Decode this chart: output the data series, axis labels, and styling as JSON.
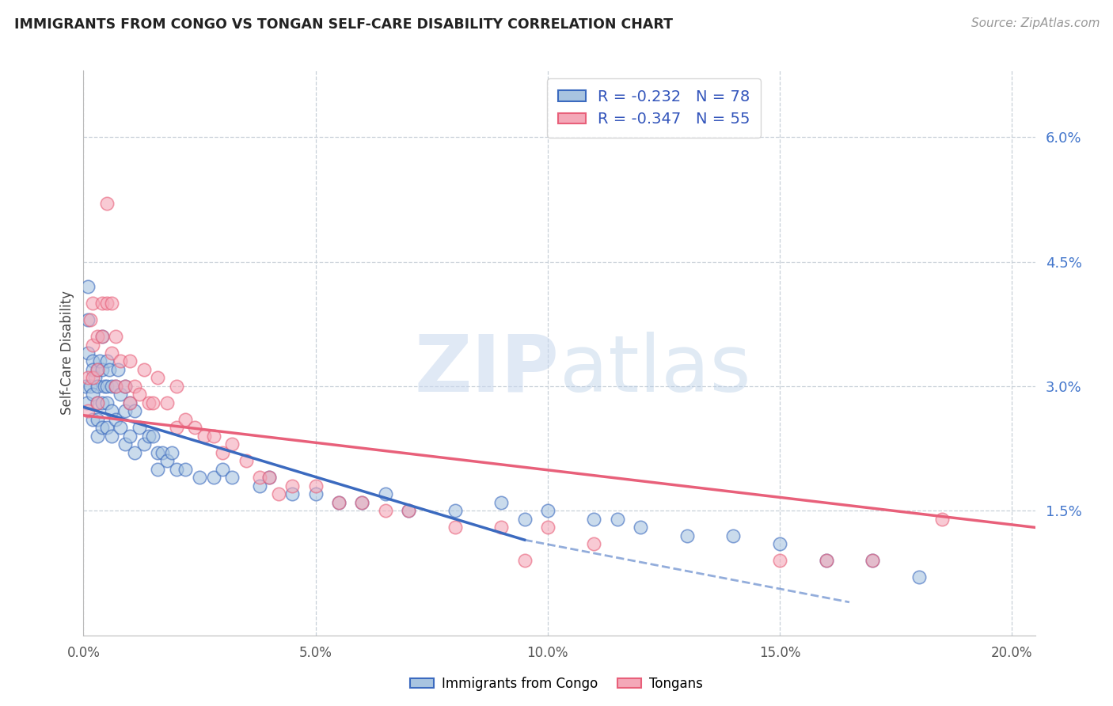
{
  "title": "IMMIGRANTS FROM CONGO VS TONGAN SELF-CARE DISABILITY CORRELATION CHART",
  "source": "Source: ZipAtlas.com",
  "ylabel": "Self-Care Disability",
  "legend_label1": "Immigrants from Congo",
  "legend_label2": "Tongans",
  "r1": -0.232,
  "n1": 78,
  "r2": -0.347,
  "n2": 55,
  "color1": "#a8c4e0",
  "color2": "#f4a8b8",
  "trendline1_color": "#3b6abf",
  "trendline2_color": "#e8607a",
  "xlim": [
    0.0,
    0.205
  ],
  "ylim": [
    0.0,
    0.068
  ],
  "x_ticks": [
    0.0,
    0.05,
    0.1,
    0.15,
    0.2
  ],
  "x_tick_labels": [
    "0.0%",
    "5.0%",
    "10.0%",
    "15.0%",
    "20.0%"
  ],
  "y_ticks_right": [
    0.015,
    0.03,
    0.045,
    0.06
  ],
  "y_tick_labels_right": [
    "1.5%",
    "3.0%",
    "4.5%",
    "6.0%"
  ],
  "background_color": "#ffffff",
  "grid_color": "#c8d0d8",
  "congo_x": [
    0.0005,
    0.0008,
    0.001,
    0.001,
    0.001,
    0.0015,
    0.002,
    0.002,
    0.002,
    0.002,
    0.0025,
    0.003,
    0.003,
    0.003,
    0.003,
    0.003,
    0.0035,
    0.004,
    0.004,
    0.004,
    0.004,
    0.0045,
    0.005,
    0.005,
    0.005,
    0.005,
    0.0055,
    0.006,
    0.006,
    0.006,
    0.007,
    0.007,
    0.0075,
    0.008,
    0.008,
    0.009,
    0.009,
    0.009,
    0.01,
    0.01,
    0.011,
    0.011,
    0.012,
    0.013,
    0.014,
    0.015,
    0.016,
    0.016,
    0.017,
    0.018,
    0.019,
    0.02,
    0.022,
    0.025,
    0.028,
    0.03,
    0.032,
    0.038,
    0.04,
    0.045,
    0.05,
    0.055,
    0.06,
    0.065,
    0.07,
    0.08,
    0.09,
    0.095,
    0.1,
    0.11,
    0.115,
    0.12,
    0.13,
    0.14,
    0.15,
    0.16,
    0.17,
    0.18
  ],
  "congo_y": [
    0.03,
    0.028,
    0.042,
    0.038,
    0.034,
    0.03,
    0.033,
    0.032,
    0.029,
    0.026,
    0.031,
    0.032,
    0.03,
    0.028,
    0.026,
    0.024,
    0.033,
    0.036,
    0.032,
    0.028,
    0.025,
    0.03,
    0.033,
    0.03,
    0.028,
    0.025,
    0.032,
    0.03,
    0.027,
    0.024,
    0.03,
    0.026,
    0.032,
    0.029,
    0.025,
    0.03,
    0.027,
    0.023,
    0.028,
    0.024,
    0.027,
    0.022,
    0.025,
    0.023,
    0.024,
    0.024,
    0.022,
    0.02,
    0.022,
    0.021,
    0.022,
    0.02,
    0.02,
    0.019,
    0.019,
    0.02,
    0.019,
    0.018,
    0.019,
    0.017,
    0.017,
    0.016,
    0.016,
    0.017,
    0.015,
    0.015,
    0.016,
    0.014,
    0.015,
    0.014,
    0.014,
    0.013,
    0.012,
    0.012,
    0.011,
    0.009,
    0.009,
    0.007
  ],
  "tongan_x": [
    0.001,
    0.001,
    0.0015,
    0.002,
    0.002,
    0.002,
    0.003,
    0.003,
    0.003,
    0.004,
    0.004,
    0.005,
    0.005,
    0.006,
    0.006,
    0.007,
    0.007,
    0.008,
    0.009,
    0.01,
    0.01,
    0.011,
    0.012,
    0.013,
    0.014,
    0.015,
    0.016,
    0.018,
    0.02,
    0.02,
    0.022,
    0.024,
    0.026,
    0.028,
    0.03,
    0.032,
    0.035,
    0.038,
    0.04,
    0.045,
    0.05,
    0.055,
    0.06,
    0.065,
    0.07,
    0.08,
    0.09,
    0.1,
    0.11,
    0.15,
    0.16,
    0.17,
    0.185,
    0.095,
    0.042
  ],
  "tongan_y": [
    0.031,
    0.027,
    0.038,
    0.04,
    0.035,
    0.031,
    0.036,
    0.032,
    0.028,
    0.04,
    0.036,
    0.052,
    0.04,
    0.04,
    0.034,
    0.036,
    0.03,
    0.033,
    0.03,
    0.033,
    0.028,
    0.03,
    0.029,
    0.032,
    0.028,
    0.028,
    0.031,
    0.028,
    0.03,
    0.025,
    0.026,
    0.025,
    0.024,
    0.024,
    0.022,
    0.023,
    0.021,
    0.019,
    0.019,
    0.018,
    0.018,
    0.016,
    0.016,
    0.015,
    0.015,
    0.013,
    0.013,
    0.013,
    0.011,
    0.009,
    0.009,
    0.009,
    0.014,
    0.009,
    0.017
  ],
  "trend1_x_solid_end": 0.095,
  "trend1_x_dashed_end": 0.165,
  "trend1_start_y": 0.0275,
  "trend1_end_solid_y": 0.0115,
  "trend1_end_dashed_y": 0.004,
  "trend2_start_y": 0.0265,
  "trend2_end_y": 0.013
}
